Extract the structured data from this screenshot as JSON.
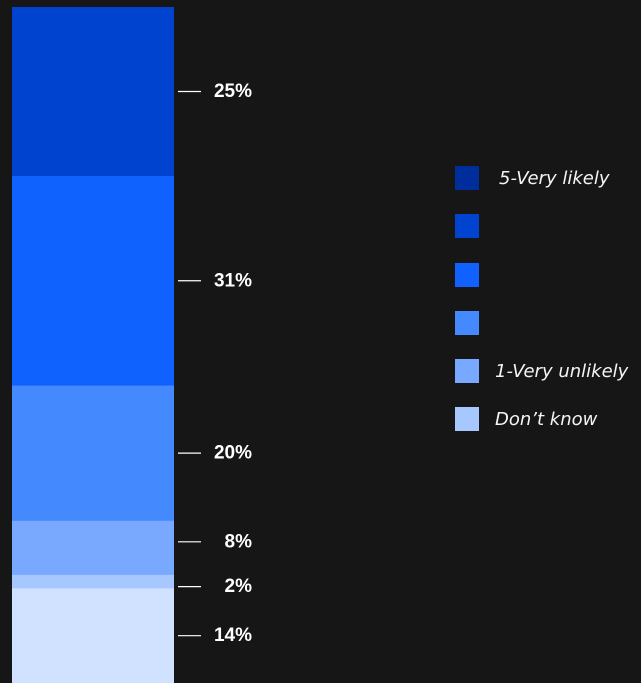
{
  "chart_data": {
    "type": "bar",
    "stacked": true,
    "orientation": "vertical",
    "categories": [
      ""
    ],
    "series": [
      {
        "name": "5-Very likely",
        "values": [
          25
        ],
        "label": "25%",
        "color": "#0043ce"
      },
      {
        "name": "",
        "values": [
          31
        ],
        "label": "31%",
        "color": "#0f62fe"
      },
      {
        "name": "",
        "values": [
          20
        ],
        "label": "20%",
        "color": "#4589ff"
      },
      {
        "name": "",
        "values": [
          8
        ],
        "label": "8%",
        "color": "#78a9ff"
      },
      {
        "name": "1-Very unlikely",
        "values": [
          2
        ],
        "label": "2%",
        "color": "#a6c8ff"
      },
      {
        "name": "Don’t know",
        "values": [
          14
        ],
        "label": "14%",
        "color": "#d0e2ff"
      }
    ],
    "unit": "%",
    "grid": false,
    "legend_position": "right"
  },
  "legend": {
    "items": [
      {
        "label": "5-Very likely",
        "color": "#002d9c"
      },
      {
        "label": "",
        "color": "#0043ce"
      },
      {
        "label": "",
        "color": "#0f62fe"
      },
      {
        "label": "",
        "color": "#4589ff"
      },
      {
        "label": "1-Very unlikely",
        "color": "#78a9ff"
      },
      {
        "label": "Don’t know",
        "color": "#a6c8ff"
      }
    ]
  },
  "theme": {
    "background": "#161616",
    "label_color": "#ffffff"
  }
}
